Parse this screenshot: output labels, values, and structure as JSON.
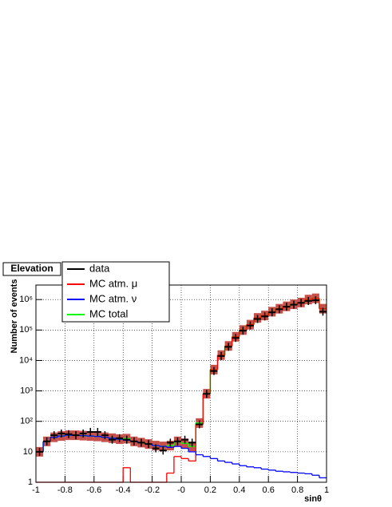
{
  "chart_data": {
    "type": "histogram",
    "title": "Elevation",
    "xlabel": "sinθ",
    "ylabel": "Number of events",
    "bins": [
      -1,
      -0.95,
      -0.9,
      -0.85,
      -0.8,
      -0.75,
      -0.7,
      -0.65,
      -0.6,
      -0.55,
      -0.5,
      -0.45,
      -0.4,
      -0.35,
      -0.3,
      -0.25,
      -0.2,
      -0.15,
      -0.1,
      -0.05,
      0,
      0.05,
      0.1,
      0.15,
      0.2,
      0.25,
      0.3,
      0.35,
      0.4,
      0.45,
      0.5,
      0.55,
      0.6,
      0.65,
      0.7,
      0.75,
      0.8,
      0.85,
      0.9,
      0.95,
      1
    ],
    "xlim": [
      -1,
      1
    ],
    "xticks": [
      -1,
      -0.8,
      -0.6,
      -0.4,
      -0.2,
      {
        "value": 0,
        "label": "-0"
      },
      0.2,
      0.4,
      0.6,
      0.8,
      1
    ],
    "ylim": [
      1,
      3000000
    ],
    "log_y": true,
    "yticks": [
      1,
      10,
      {
        "value": 100,
        "label": "10²"
      },
      {
        "value": 1000,
        "label": "10³"
      },
      {
        "value": 10000,
        "label": "10⁴"
      },
      {
        "value": 100000,
        "label": "10⁵"
      },
      {
        "value": 1000000,
        "label": "10⁶"
      }
    ],
    "grid": true,
    "legend": "top-left",
    "series": [
      {
        "name": "data",
        "color": "#000000",
        "style": "points",
        "values": [
          10,
          22,
          35,
          40,
          38,
          35,
          40,
          45,
          45,
          35,
          25,
          28,
          25,
          22,
          20,
          18,
          13,
          11,
          20,
          22,
          25,
          20,
          80,
          800,
          4500,
          14000,
          28000,
          55000,
          95000,
          140000,
          230000,
          280000,
          380000,
          480000,
          580000,
          680000,
          780000,
          900000,
          950000,
          400000
        ]
      },
      {
        "name": "MC atm. μ",
        "color": "#ff0000",
        "style": "step",
        "values": [
          0,
          0,
          0,
          0,
          0,
          0,
          0,
          0,
          0,
          0,
          0,
          0,
          3,
          0,
          0,
          0,
          0,
          0,
          2,
          7,
          6,
          5,
          80,
          800,
          5000,
          15000,
          30000,
          60000,
          100000,
          150000,
          250000,
          300000,
          400000,
          500000,
          600000,
          700000,
          800000,
          1000000,
          1100000,
          500000
        ]
      },
      {
        "name": "MC atm. ν",
        "color": "#0000ff",
        "style": "step",
        "values": [
          10,
          22,
          30,
          33,
          35,
          35,
          34,
          33,
          32,
          30,
          28,
          26,
          24,
          22,
          20,
          18,
          16,
          15,
          14,
          15,
          13,
          10,
          8,
          7,
          6,
          5,
          4.5,
          4,
          3.5,
          3.2,
          3,
          2.7,
          2.5,
          2.3,
          2.2,
          2.1,
          2,
          1.9,
          1.7,
          1.4
        ]
      },
      {
        "name": "MC total",
        "color": "#00ff00",
        "style": "band",
        "band_color": "#c8504a",
        "values": [
          10,
          22,
          30,
          33,
          35,
          35,
          34,
          33,
          32,
          30,
          28,
          26,
          27,
          22,
          20,
          18,
          16,
          15,
          16,
          22,
          19,
          15,
          88,
          807,
          5006,
          15005,
          30004,
          60004,
          100004,
          150003,
          250003,
          300003,
          400003,
          500002,
          600002,
          700002,
          800002,
          1000002,
          1100002,
          500001
        ]
      }
    ]
  }
}
